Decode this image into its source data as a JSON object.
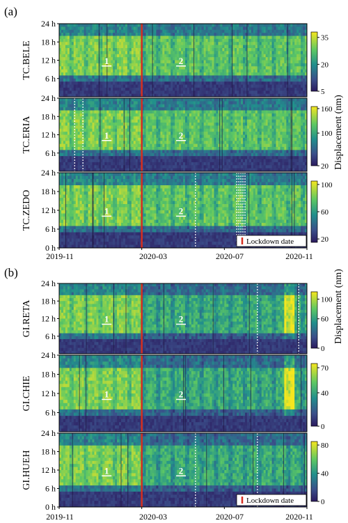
{
  "figure": {
    "group_labels": [
      "(a)",
      "(b)"
    ],
    "colorbar_title": "Displacement (nm)",
    "lockdown_label": "Lockdown date",
    "x_ticks": [
      "2019-11",
      "2020-03",
      "2020-07",
      "2020-11"
    ],
    "y_ticks_top": [
      "24 h",
      "18 h",
      "12 h",
      "6 h"
    ],
    "y_ticks_bottom": [
      "24 h",
      "18 h",
      "12 h",
      "6 h",
      "0 h"
    ]
  },
  "colors": {
    "lockdown_line": "#d62e1f",
    "viridis_low": "#2b1a5e",
    "viridis_mid": "#218f8c",
    "viridis_high": "#f5e61f"
  },
  "chart_data": [
    {
      "type": "heatmap",
      "station": "TC.BELE",
      "colorbar_ticks": [
        35,
        20,
        5
      ],
      "colorbar_range": [
        5,
        38
      ],
      "period_labels": [
        "1",
        "2"
      ],
      "x_range": [
        "2019-11",
        "2020-11"
      ],
      "y_range": [
        "0 h",
        "24 h"
      ],
      "lockdown_date": "2020-03"
    },
    {
      "type": "heatmap",
      "station": "TC.ERIA",
      "colorbar_ticks": [
        160,
        100,
        20
      ],
      "colorbar_range": [
        20,
        165
      ],
      "period_labels": [
        "1",
        "2"
      ],
      "x_range": [
        "2019-11",
        "2020-11"
      ],
      "y_range": [
        "0 h",
        "24 h"
      ],
      "lockdown_date": "2020-03"
    },
    {
      "type": "heatmap",
      "station": "TC.ZEDO",
      "colorbar_ticks": [
        100,
        60,
        20
      ],
      "colorbar_range": [
        15,
        105
      ],
      "period_labels": [
        "1",
        "2"
      ],
      "x_range": [
        "2019-11",
        "2020-11"
      ],
      "y_range": [
        "0 h",
        "24 h"
      ],
      "lockdown_date": "2020-03"
    },
    {
      "type": "heatmap",
      "station": "GI.RETA",
      "colorbar_ticks": [
        100,
        60,
        0
      ],
      "colorbar_range": [
        0,
        115
      ],
      "period_labels": [
        "1",
        "2"
      ],
      "x_range": [
        "2019-11",
        "2020-11"
      ],
      "y_range": [
        "0 h",
        "24 h"
      ],
      "lockdown_date": "2020-03"
    },
    {
      "type": "heatmap",
      "station": "GI.CHIE",
      "colorbar_ticks": [
        70,
        40,
        0
      ],
      "colorbar_range": [
        0,
        75
      ],
      "period_labels": [
        "1",
        "2"
      ],
      "x_range": [
        "2019-11",
        "2020-11"
      ],
      "y_range": [
        "0 h",
        "24 h"
      ],
      "lockdown_date": "2020-03"
    },
    {
      "type": "heatmap",
      "station": "GI.HUEH",
      "colorbar_ticks": [
        80,
        40,
        0
      ],
      "colorbar_range": [
        0,
        85
      ],
      "period_labels": [
        "1",
        "2"
      ],
      "x_range": [
        "2019-11",
        "2020-11"
      ],
      "y_range": [
        "0 h",
        "24 h"
      ],
      "lockdown_date": "2020-03"
    }
  ]
}
